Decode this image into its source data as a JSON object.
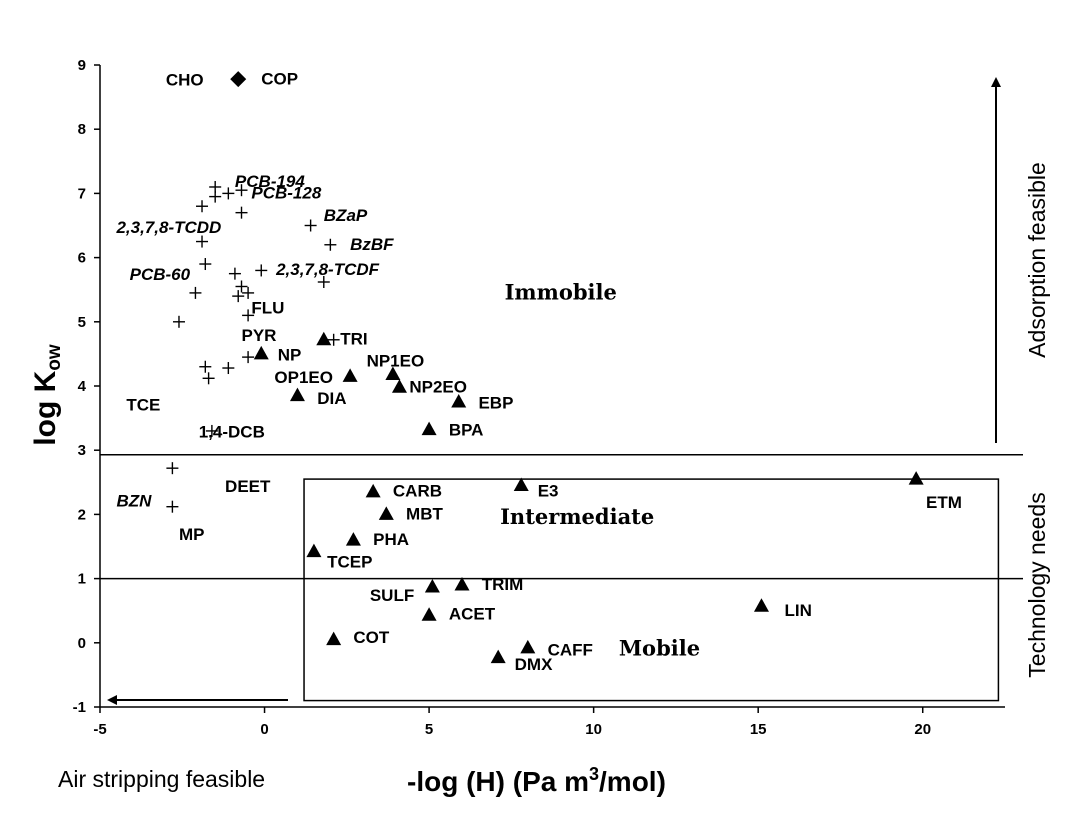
{
  "chart_data": {
    "type": "scatter",
    "xlabel": "-log (H) (Pa m³/mol)",
    "xlabel_parts": {
      "pre": "-log (H) (Pa m",
      "sup": "3",
      "post": "/mol)"
    },
    "ylabel": "log Kow",
    "ylabel_parts": {
      "main": "log K",
      "sub": "ow"
    },
    "xlim": [
      -5,
      22.5
    ],
    "ylim": [
      -1,
      9
    ],
    "x_ticks": [
      -5,
      0,
      5,
      10,
      15,
      20
    ],
    "y_ticks": [
      -1,
      0,
      1,
      2,
      3,
      4,
      5,
      6,
      7,
      8,
      9
    ],
    "grid": false,
    "reference_lines": [
      {
        "name": "immobile-threshold-line",
        "y": 2.93
      },
      {
        "name": "mobile-threshold-line",
        "y": 1.0
      }
    ],
    "intermediate_box": {
      "x0": 1.2,
      "x1": 22.3,
      "y0": -0.9,
      "y1": 2.55
    },
    "regions": [
      {
        "name": "region-immobile",
        "label": "Immobile",
        "x": 9.0,
        "y": 5.35
      },
      {
        "name": "region-intermediate",
        "label": "Intermediate",
        "x": 9.5,
        "y": 1.85
      },
      {
        "name": "region-mobile",
        "label": "Mobile",
        "x": 12.0,
        "y": -0.2
      }
    ],
    "side_labels": {
      "adsorption": "Adsorption feasible",
      "technology": "Technology needs",
      "air_stripping": "Air stripping feasible"
    },
    "series": [
      {
        "name": "diamond",
        "marker": "diamond",
        "points": [
          {
            "x": -0.8,
            "y": 8.78
          }
        ]
      },
      {
        "name": "cross",
        "marker": "plus",
        "points": [
          {
            "x": -1.5,
            "y": 7.1
          },
          {
            "x": -1.5,
            "y": 6.95
          },
          {
            "x": -1.1,
            "y": 7.0
          },
          {
            "x": -0.7,
            "y": 7.05
          },
          {
            "x": -1.9,
            "y": 6.8
          },
          {
            "x": -0.7,
            "y": 6.7
          },
          {
            "x": -1.9,
            "y": 6.25
          },
          {
            "x": 1.4,
            "y": 6.5
          },
          {
            "x": 2.0,
            "y": 6.2
          },
          {
            "x": -1.8,
            "y": 5.9
          },
          {
            "x": -0.9,
            "y": 5.75
          },
          {
            "x": -0.1,
            "y": 5.8
          },
          {
            "x": -0.7,
            "y": 5.55
          },
          {
            "x": -0.5,
            "y": 5.45
          },
          {
            "x": 1.8,
            "y": 5.62
          },
          {
            "x": -2.1,
            "y": 5.45
          },
          {
            "x": -0.8,
            "y": 5.4
          },
          {
            "x": -0.5,
            "y": 5.1
          },
          {
            "x": -2.6,
            "y": 5.0
          },
          {
            "x": 2.1,
            "y": 4.72
          },
          {
            "x": -1.8,
            "y": 4.3
          },
          {
            "x": -1.7,
            "y": 4.12
          },
          {
            "x": -1.1,
            "y": 4.28
          },
          {
            "x": -0.5,
            "y": 4.45
          },
          {
            "x": -1.6,
            "y": 3.3
          },
          {
            "x": -2.8,
            "y": 2.72
          },
          {
            "x": -2.8,
            "y": 2.12
          }
        ]
      },
      {
        "name": "triangle",
        "marker": "triangle",
        "points": [
          {
            "x": -0.1,
            "y": 4.5
          },
          {
            "x": 1.8,
            "y": 4.72
          },
          {
            "x": 2.6,
            "y": 4.15
          },
          {
            "x": 3.9,
            "y": 4.18
          },
          {
            "x": 4.1,
            "y": 3.98
          },
          {
            "x": 1.0,
            "y": 3.85
          },
          {
            "x": 5.9,
            "y": 3.75
          },
          {
            "x": 5.0,
            "y": 3.32
          },
          {
            "x": 3.3,
            "y": 2.35
          },
          {
            "x": 7.8,
            "y": 2.45
          },
          {
            "x": 19.8,
            "y": 2.55
          },
          {
            "x": 3.7,
            "y": 2.0
          },
          {
            "x": 2.7,
            "y": 1.6
          },
          {
            "x": 1.5,
            "y": 1.42
          },
          {
            "x": 5.1,
            "y": 0.87
          },
          {
            "x": 6.0,
            "y": 0.9
          },
          {
            "x": 15.1,
            "y": 0.57
          },
          {
            "x": 5.0,
            "y": 0.43
          },
          {
            "x": 2.1,
            "y": 0.05
          },
          {
            "x": 8.0,
            "y": -0.08
          },
          {
            "x": 7.1,
            "y": -0.23
          }
        ]
      }
    ],
    "point_labels": [
      {
        "text": "CHO",
        "x": -3.0,
        "y": 8.68,
        "italic": false
      },
      {
        "text": "COP",
        "x": -0.1,
        "y": 8.7,
        "italic": false
      },
      {
        "text": "PCB-194",
        "x": -0.9,
        "y": 7.1,
        "italic": true
      },
      {
        "text": "PCB-128",
        "x": -0.4,
        "y": 6.92,
        "italic": true
      },
      {
        "text": "2,3,7,8-TCDD",
        "x": -4.5,
        "y": 6.38,
        "italic": true
      },
      {
        "text": "BZaP",
        "x": 1.8,
        "y": 6.57,
        "italic": true
      },
      {
        "text": "BzBF",
        "x": 2.6,
        "y": 6.12,
        "italic": true
      },
      {
        "text": "2,3,7,8-TCDF",
        "x": 0.35,
        "y": 5.73,
        "italic": true
      },
      {
        "text": "PCB-60",
        "x": -4.1,
        "y": 5.65,
        "italic": true
      },
      {
        "text": "FLU",
        "x": -0.4,
        "y": 5.13,
        "italic": false
      },
      {
        "text": "PYR",
        "x": -0.7,
        "y": 4.7,
        "italic": false
      },
      {
        "text": "TRI",
        "x": 2.3,
        "y": 4.65,
        "italic": false
      },
      {
        "text": "NP",
        "x": 0.4,
        "y": 4.4,
        "italic": false
      },
      {
        "text": "NP1EO",
        "x": 3.1,
        "y": 4.3,
        "italic": false
      },
      {
        "text": "OP1EO",
        "x": 0.3,
        "y": 4.05,
        "italic": false
      },
      {
        "text": "NP2EO",
        "x": 4.4,
        "y": 3.9,
        "italic": false
      },
      {
        "text": "DIA",
        "x": 1.6,
        "y": 3.72,
        "italic": false
      },
      {
        "text": "TCE",
        "x": -4.2,
        "y": 3.62,
        "italic": false
      },
      {
        "text": "EBP",
        "x": 6.5,
        "y": 3.65,
        "italic": false
      },
      {
        "text": "1,4-DCB",
        "x": -2.0,
        "y": 3.2,
        "italic": false
      },
      {
        "text": "BPA",
        "x": 5.6,
        "y": 3.23,
        "italic": false
      },
      {
        "text": "DEET",
        "x": -1.2,
        "y": 2.35,
        "italic": false
      },
      {
        "text": "CARB",
        "x": 3.9,
        "y": 2.28,
        "italic": false
      },
      {
        "text": "E3",
        "x": 8.3,
        "y": 2.28,
        "italic": false
      },
      {
        "text": "ETM",
        "x": 20.1,
        "y": 2.1,
        "italic": false
      },
      {
        "text": "BZN",
        "x": -4.5,
        "y": 2.12,
        "italic": true
      },
      {
        "text": "MBT",
        "x": 4.3,
        "y": 1.92,
        "italic": false
      },
      {
        "text": "MP",
        "x": -2.6,
        "y": 1.6,
        "italic": false
      },
      {
        "text": "PHA",
        "x": 3.3,
        "y": 1.52,
        "italic": false
      },
      {
        "text": "TCEP",
        "x": 1.9,
        "y": 1.17,
        "italic": false
      },
      {
        "text": "TRIM",
        "x": 6.6,
        "y": 0.82,
        "italic": false
      },
      {
        "text": "SULF",
        "x": 3.2,
        "y": 0.65,
        "italic": false
      },
      {
        "text": "LIN",
        "x": 15.8,
        "y": 0.42,
        "italic": false
      },
      {
        "text": "ACET",
        "x": 5.6,
        "y": 0.36,
        "italic": false
      },
      {
        "text": "COT",
        "x": 2.7,
        "y": 0.0,
        "italic": false
      },
      {
        "text": "CAFF",
        "x": 8.6,
        "y": -0.2,
        "italic": false
      },
      {
        "text": "DMX",
        "x": 7.6,
        "y": -0.42,
        "italic": false
      }
    ]
  }
}
